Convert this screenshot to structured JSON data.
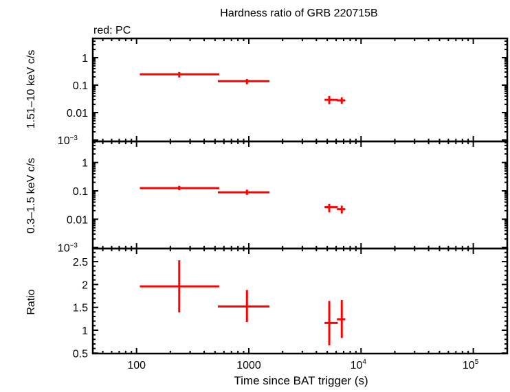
{
  "title": "Hardness ratio of GRB 220715B",
  "legend_note": "red: PC",
  "colors": {
    "series": "#ff0000",
    "axes": "#000000"
  },
  "xaxis": {
    "label": "Time since BAT trigger (s)",
    "scale": "log",
    "range": [
      43,
      215000
    ],
    "ticks": [
      {
        "value": 100,
        "label": "100"
      },
      {
        "value": 1000,
        "label": "1000"
      },
      {
        "value": 10000,
        "label": "10",
        "exp": "4"
      },
      {
        "value": 100000,
        "label": "10",
        "exp": "5"
      }
    ]
  },
  "chart_data": [
    {
      "type": "scatter",
      "panel": "hard",
      "ylabel": "1.51–10 keV c/s",
      "yscale": "log",
      "ylim": [
        0.001,
        5
      ],
      "yticks": [
        {
          "value": 1,
          "label": "1"
        },
        {
          "value": 0.1,
          "label": "0.1"
        },
        {
          "value": 0.01,
          "label": "0.01"
        },
        {
          "value": 0.001,
          "label": "10",
          "exp": "−3"
        }
      ],
      "points": [
        {
          "x": 240,
          "xlo": 107,
          "xhi": 545,
          "y": 0.247,
          "ylo": 0.19,
          "yhi": 0.3
        },
        {
          "x": 962,
          "xlo": 530,
          "xhi": 1527,
          "y": 0.139,
          "ylo": 0.108,
          "yhi": 0.168
        },
        {
          "x": 5210,
          "xlo": 4730,
          "xhi": 6200,
          "y": 0.0294,
          "ylo": 0.0203,
          "yhi": 0.04
        },
        {
          "x": 6730,
          "xlo": 6100,
          "xhi": 7240,
          "y": 0.0279,
          "ylo": 0.021,
          "yhi": 0.036
        }
      ]
    },
    {
      "type": "scatter",
      "panel": "soft",
      "ylabel": "0.3–1.5 keV c/s",
      "yscale": "log",
      "ylim": [
        0.001,
        5
      ],
      "yticks": [
        {
          "value": 1,
          "label": "1"
        },
        {
          "value": 0.1,
          "label": "0.1"
        },
        {
          "value": 0.01,
          "label": "0.01"
        },
        {
          "value": 0.001,
          "label": "10",
          "exp": "−3"
        }
      ],
      "points": [
        {
          "x": 240,
          "xlo": 107,
          "xhi": 545,
          "y": 0.125,
          "ylo": 0.105,
          "yhi": 0.15
        },
        {
          "x": 962,
          "xlo": 530,
          "xhi": 1527,
          "y": 0.089,
          "ylo": 0.072,
          "yhi": 0.11
        },
        {
          "x": 5210,
          "xlo": 4730,
          "xhi": 6200,
          "y": 0.0267,
          "ylo": 0.0175,
          "yhi": 0.035
        },
        {
          "x": 6730,
          "xlo": 6100,
          "xhi": 7240,
          "y": 0.0226,
          "ylo": 0.016,
          "yhi": 0.03
        }
      ]
    },
    {
      "type": "scatter",
      "panel": "ratio",
      "ylabel": "Ratio",
      "yscale": "linear",
      "ylim": [
        0.5,
        2.78
      ],
      "yticks": [
        {
          "value": 2.5,
          "label": "2.5"
        },
        {
          "value": 2,
          "label": "2"
        },
        {
          "value": 1.5,
          "label": "1.5"
        },
        {
          "value": 1,
          "label": "1"
        },
        {
          "value": 0.5,
          "label": "0.5"
        }
      ],
      "points": [
        {
          "x": 240,
          "xlo": 107,
          "xhi": 545,
          "y": 1.96,
          "ylo": 1.39,
          "yhi": 2.53
        },
        {
          "x": 962,
          "xlo": 530,
          "xhi": 1527,
          "y": 1.52,
          "ylo": 1.18,
          "yhi": 1.88
        },
        {
          "x": 5210,
          "xlo": 4730,
          "xhi": 6200,
          "y": 1.16,
          "ylo": 0.67,
          "yhi": 1.64
        },
        {
          "x": 6730,
          "xlo": 6100,
          "xhi": 7240,
          "y": 1.24,
          "ylo": 0.83,
          "yhi": 1.66
        }
      ]
    }
  ]
}
